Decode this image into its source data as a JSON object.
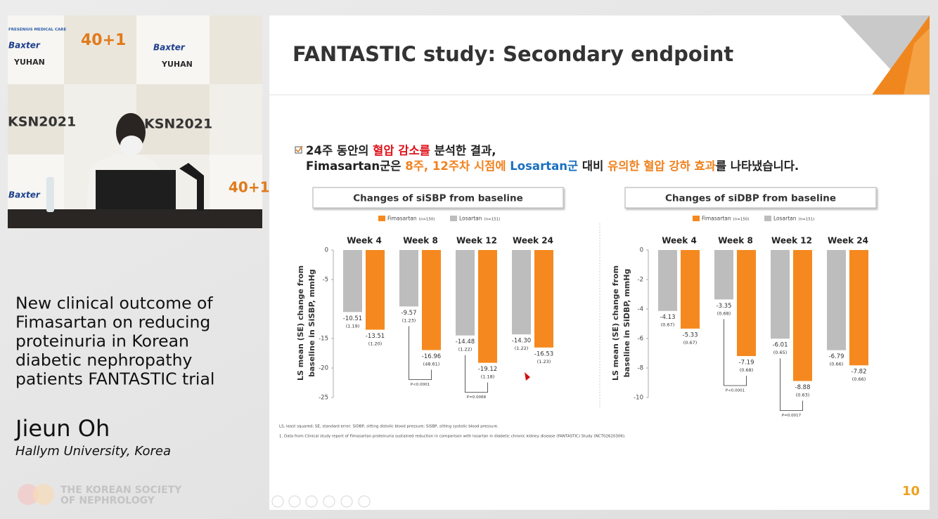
{
  "video": {
    "sponsor": "Baxter",
    "sponsor2": "YUHAN",
    "event": "KSN2021",
    "anniversary": "40+1",
    "company": "FRESENIUS MEDICAL CARE"
  },
  "talk": {
    "title_lines": [
      "New clinical outcome of",
      "Fimasartan on reducing",
      "proteinuria in Korean",
      "diabetic nephropathy",
      "patients FANTASTIC trial"
    ],
    "speaker": "Jieun Oh",
    "affiliation": "Hallym University, Korea",
    "society_lines": [
      "THE KOREAN SOCIETY",
      "OF NEPHROLOGY"
    ]
  },
  "slide": {
    "title": "FANTASTIC study: Secondary endpoint",
    "summary": [
      [
        {
          "text": "24주 동안의 ",
          "color": "#222222"
        },
        {
          "text": "혈압 감소를",
          "color": "#e0141c"
        },
        {
          "text": " 분석한 결과,",
          "color": "#222222"
        }
      ],
      [
        {
          "text": "Fimasartan군은 ",
          "color": "#222222"
        },
        {
          "text": "8주, 12주차 시점에",
          "color": "#f0821e"
        },
        {
          "text": " ",
          "color": "#222222"
        },
        {
          "text": "Losartan군",
          "color": "#1a6fbf"
        },
        {
          "text": " 대비 ",
          "color": "#222222"
        },
        {
          "text": "유의한 혈압 강하 효과",
          "color": "#f0821e"
        },
        {
          "text": "를 나타냈습니다.",
          "color": "#222222"
        }
      ]
    ],
    "footnotes": [
      "LS, least squared; SE, standard error; SiDBP, sitting distolic blood pressure; SiSBP, sitting systolic blood pressure.",
      "1. Data from Clinical study report of Fimasartan proteinuria sustained reduction in comparison with losartan in diabetic chronic kidney disease (FANTASTIC) Study (NCT02620306)."
    ],
    "page_number": "10"
  },
  "chart_data": [
    {
      "type": "bar",
      "title": "Changes of siSBP from baseline",
      "ylabel": [
        "LS mean (SE) change from",
        "baseline in SiSBP, mmHg"
      ],
      "categories": [
        "Week 4",
        "Week 8",
        "Week 12",
        "Week 24"
      ],
      "series": [
        {
          "name": "Fimasartan",
          "note": "(n=150)",
          "color": "#f5891f",
          "values": [
            -13.51,
            -16.96,
            -19.12,
            -16.53
          ],
          "value_labels": [
            "-13.51",
            "-16.96",
            "-19.12",
            "-16.53"
          ],
          "se_labels": [
            "(1.20)",
            "(48.61)",
            "(1.18)",
            "(1.23)"
          ]
        },
        {
          "name": "Losartan",
          "note": "(n=151)",
          "color": "#bdbdbd",
          "values": [
            -10.51,
            -9.57,
            -14.48,
            -14.3
          ],
          "value_labels": [
            "-10.51",
            "-9.57",
            "-14.48",
            "-14.30"
          ],
          "se_labels": [
            "(1.19)",
            "(1.23)",
            "(1.22)",
            "(1.22)"
          ]
        }
      ],
      "p_values": [
        null,
        "P<0.0001",
        "P=0.0068",
        null
      ],
      "ylim": [
        -25,
        0
      ],
      "yticks": [
        0,
        -5,
        -15,
        -20,
        -25
      ]
    },
    {
      "type": "bar",
      "title": "Changes of siDBP from baseline",
      "ylabel": [
        "LS mean (SE) change from",
        "baseline in SiDBP, mmHg"
      ],
      "categories": [
        "Week 4",
        "Week 8",
        "Week 12",
        "Week 24"
      ],
      "series": [
        {
          "name": "Fimasartan",
          "note": "(n=150)",
          "color": "#f5891f",
          "values": [
            -5.33,
            -7.19,
            -8.88,
            -7.82
          ],
          "value_labels": [
            "-5.33",
            "-7.19",
            "-8.88",
            "-7.82"
          ],
          "se_labels": [
            "(0.67)",
            "(0.68)",
            "(0.63)",
            "(0.66)"
          ]
        },
        {
          "name": "Losartan",
          "note": "(n=151)",
          "color": "#bdbdbd",
          "values": [
            -4.13,
            -3.35,
            -6.01,
            -6.79
          ],
          "value_labels": [
            "-4.13",
            "-3.35",
            "-6.01",
            "-6.79"
          ],
          "se_labels": [
            "(0.67)",
            "(0.68)",
            "(0.65)",
            "(0.66)"
          ]
        }
      ],
      "p_values": [
        null,
        "P<0.0001",
        "P=0.0017",
        null
      ],
      "ylim": [
        -10,
        0
      ],
      "yticks": [
        0,
        -2,
        -4,
        -6,
        -8,
        -10
      ]
    }
  ]
}
